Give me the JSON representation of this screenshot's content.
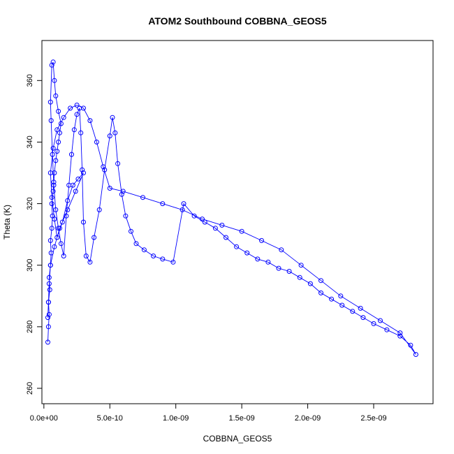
{
  "chart_data": {
    "type": "scatter",
    "mode": "lines+markers",
    "title": "ATOM2 Southbound COBBNA_GEOS5",
    "xlabel": "COBBNA_GEOS5",
    "ylabel": "Theta (K)",
    "xlim": [
      -1.5e-11,
      2.95e-09
    ],
    "ylim": [
      255,
      373
    ],
    "xticks": [
      0,
      5e-10,
      1e-09,
      1.5e-09,
      2e-09,
      2.5e-09
    ],
    "xtick_labels": [
      "0.0e+00",
      "5.0e-10",
      "1.0e-09",
      "1.5e-09",
      "2.0e-09",
      "2.5e-09"
    ],
    "yticks": [
      260,
      280,
      300,
      320,
      340,
      360
    ],
    "ytick_labels": [
      "260",
      "280",
      "300",
      "320",
      "340",
      "360"
    ],
    "grid": false,
    "color": "#0000ff",
    "series": [
      {
        "x": [
          3e-11,
          3.5e-11,
          4e-11,
          3.5e-11,
          4.5e-11,
          4e-11,
          5e-11,
          5.5e-11,
          5e-11,
          6e-11,
          6.5e-11,
          6e-11,
          7e-11,
          7.5e-11,
          8e-11,
          9e-11,
          1e-10,
          1.1e-10,
          1.2e-10,
          1.3e-10,
          1.1e-10,
          9e-11,
          8e-11,
          7e-11,
          6e-11,
          5e-11,
          5.5e-11,
          6.5e-11,
          7.5e-11,
          9e-11,
          1.1e-10,
          1.3e-10,
          1.5e-10,
          1.7e-10,
          1.9e-10,
          2.1e-10,
          2.3e-10,
          2.5e-10,
          2.7e-10,
          2.8e-10,
          2.9e-10,
          3e-10,
          3.2e-10,
          3.5e-10,
          3.8e-10,
          4.2e-10,
          4.6e-10,
          5e-10,
          5.2e-10,
          5.4e-10,
          5.6e-10,
          5.9e-10,
          6.2e-10,
          6.6e-10,
          7e-10,
          7.6e-10,
          8.3e-10,
          9e-10,
          9.8e-10,
          1.06e-09,
          1.14e-09,
          1.22e-09,
          1.3e-09,
          1.38e-09,
          1.46e-09,
          1.54e-09,
          1.62e-09,
          1.7e-09,
          1.78e-09,
          1.86e-09,
          1.94e-09,
          2.02e-09,
          2.1e-09,
          2.18e-09,
          2.26e-09,
          2.34e-09,
          2.42e-09,
          2.5e-09,
          2.6e-09,
          2.7e-09,
          2.78e-09,
          2.82e-09,
          2.7e-09,
          2.55e-09,
          2.4e-09,
          2.25e-09,
          2.1e-09,
          1.95e-09,
          1.8e-09,
          1.65e-09,
          1.5e-09,
          1.35e-09,
          1.2e-09,
          1.05e-09,
          9e-10,
          7.5e-10,
          6e-10,
          5e-10,
          4.5e-10,
          4e-10,
          3.5e-10,
          3e-10,
          2.5e-10,
          2e-10,
          1.5e-10,
          1e-10,
          7e-11,
          5e-11,
          6e-11,
          8e-11,
          1e-10,
          1.4e-10,
          1.8e-10,
          2.2e-10,
          2.6e-10,
          3e-10,
          2.4e-10,
          1.8e-10,
          1.2e-10,
          8e-11,
          5e-11,
          4e-11,
          3.5e-11,
          3e-11
        ],
        "y": [
          275,
          280,
          284,
          288,
          292,
          296,
          300,
          304,
          308,
          312,
          316,
          320,
          324,
          327,
          330,
          334,
          337,
          340,
          343,
          346,
          350,
          355,
          360,
          366,
          365,
          353,
          347,
          336,
          326,
          318,
          312,
          307,
          303,
          316,
          326,
          336,
          344,
          349,
          351,
          343,
          331,
          314,
          303,
          301,
          309,
          318,
          331,
          342,
          348,
          343,
          333,
          323,
          316,
          311,
          307,
          305,
          303,
          302,
          301,
          320,
          316,
          314,
          312,
          309,
          306,
          304,
          302,
          301,
          299,
          298,
          296,
          294,
          291,
          289,
          287,
          285,
          283,
          281,
          279,
          277,
          274,
          271,
          278,
          282,
          286,
          290,
          295,
          300,
          305,
          308,
          311,
          313,
          315,
          318,
          320,
          322,
          324,
          325,
          332,
          340,
          347,
          351,
          352,
          351,
          348,
          344,
          338,
          330,
          322,
          315,
          309,
          314,
          321,
          326,
          328,
          330,
          324,
          318,
          312,
          306,
          300,
          294,
          288,
          283
        ]
      }
    ]
  }
}
